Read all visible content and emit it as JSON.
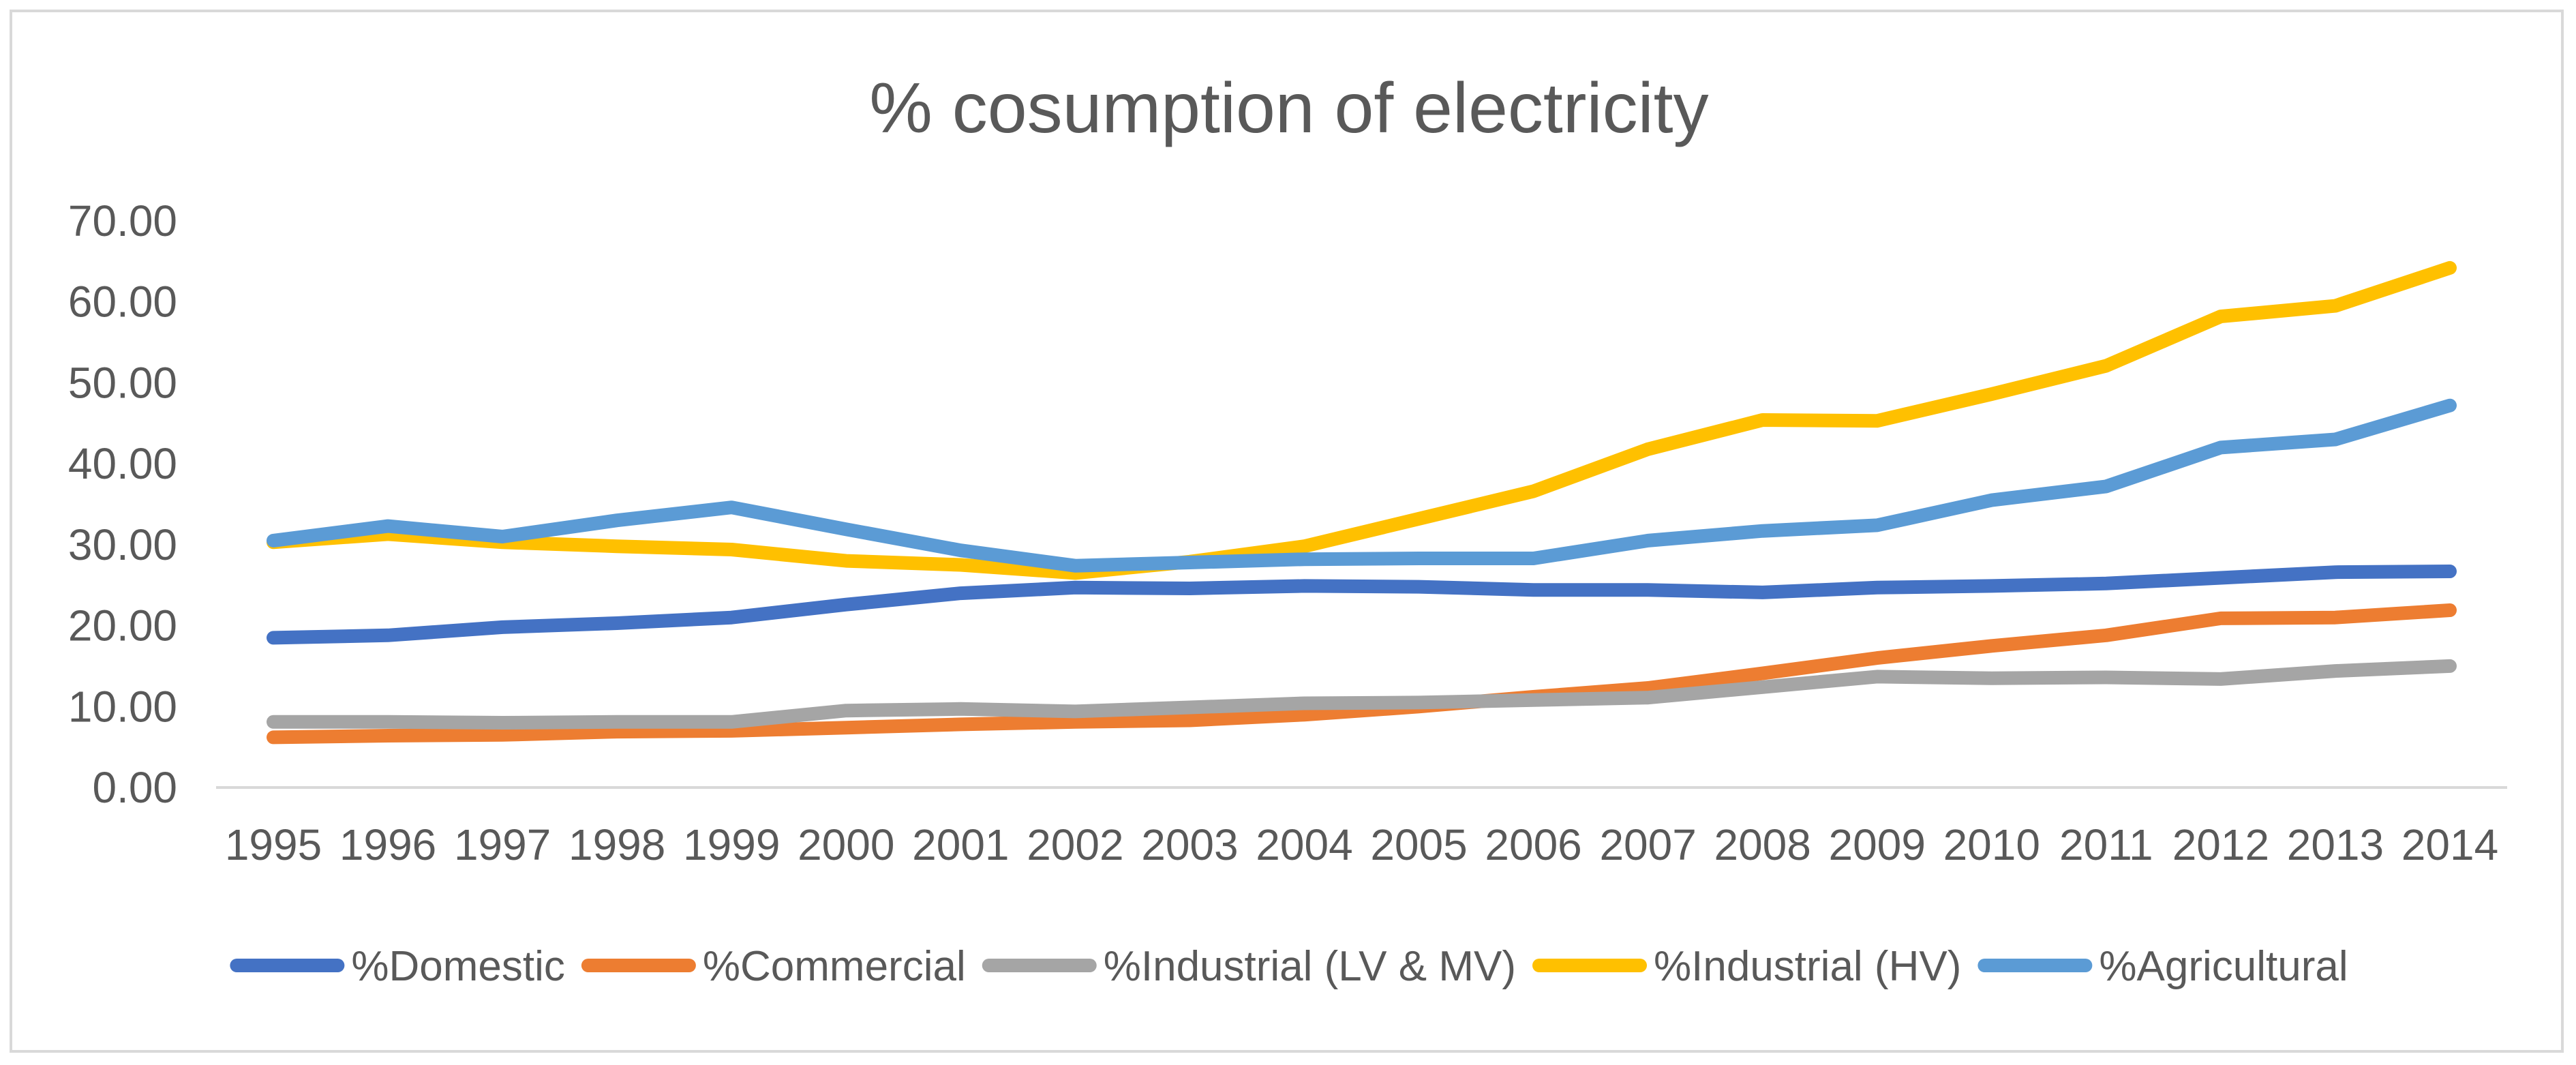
{
  "chart_data": {
    "type": "line",
    "title": "% cosumption of electricity",
    "xlabel": "",
    "ylabel": "",
    "ylim": [
      0,
      70
    ],
    "yticks": [
      "0.00",
      "10.00",
      "20.00",
      "30.00",
      "40.00",
      "50.00",
      "60.00",
      "70.00"
    ],
    "grid": false,
    "legend_position": "bottom",
    "categories": [
      "1995",
      "1996",
      "1997",
      "1998",
      "1999",
      "2000",
      "2001",
      "2002",
      "2003",
      "2004",
      "2005",
      "2006",
      "2007",
      "2008",
      "2009",
      "2010",
      "2011",
      "2012",
      "2013",
      "2014"
    ],
    "series": [
      {
        "name": "%Domestic",
        "color": "#4472c4",
        "values": [
          18.5,
          18.8,
          19.8,
          20.3,
          21.0,
          22.6,
          24.0,
          24.7,
          24.6,
          24.9,
          24.8,
          24.4,
          24.4,
          24.1,
          24.7,
          24.9,
          25.2,
          25.9,
          26.6,
          26.7
        ]
      },
      {
        "name": "%Commercial",
        "color": "#ed7d31",
        "values": [
          6.2,
          6.4,
          6.5,
          6.9,
          7.0,
          7.4,
          7.8,
          8.1,
          8.3,
          9.0,
          10.0,
          11.2,
          12.3,
          14.1,
          16.0,
          17.5,
          18.8,
          20.9,
          21.0,
          21.9
        ]
      },
      {
        "name": "%Industrial (LV & MV)",
        "color": "#a5a5a5",
        "values": [
          8.1,
          8.1,
          8.0,
          8.1,
          8.1,
          9.5,
          9.7,
          9.4,
          9.9,
          10.4,
          10.5,
          10.8,
          11.1,
          12.4,
          13.7,
          13.5,
          13.6,
          13.4,
          14.4,
          15.0
        ]
      },
      {
        "name": "%Industrial (HV)",
        "color": "#ffc000",
        "values": [
          30.3,
          31.3,
          30.3,
          29.8,
          29.4,
          28.0,
          27.5,
          26.5,
          27.9,
          29.8,
          33.2,
          36.6,
          41.8,
          45.4,
          45.3,
          48.6,
          52.1,
          58.2,
          59.5,
          64.2
        ]
      },
      {
        "name": "%Agricultural",
        "color": "#5b9bd5",
        "values": [
          30.5,
          32.3,
          31.0,
          33.0,
          34.6,
          31.9,
          29.3,
          27.4,
          27.8,
          28.2,
          28.3,
          28.3,
          30.5,
          31.7,
          32.4,
          35.5,
          37.2,
          42.0,
          43.0,
          47.2
        ]
      }
    ]
  }
}
